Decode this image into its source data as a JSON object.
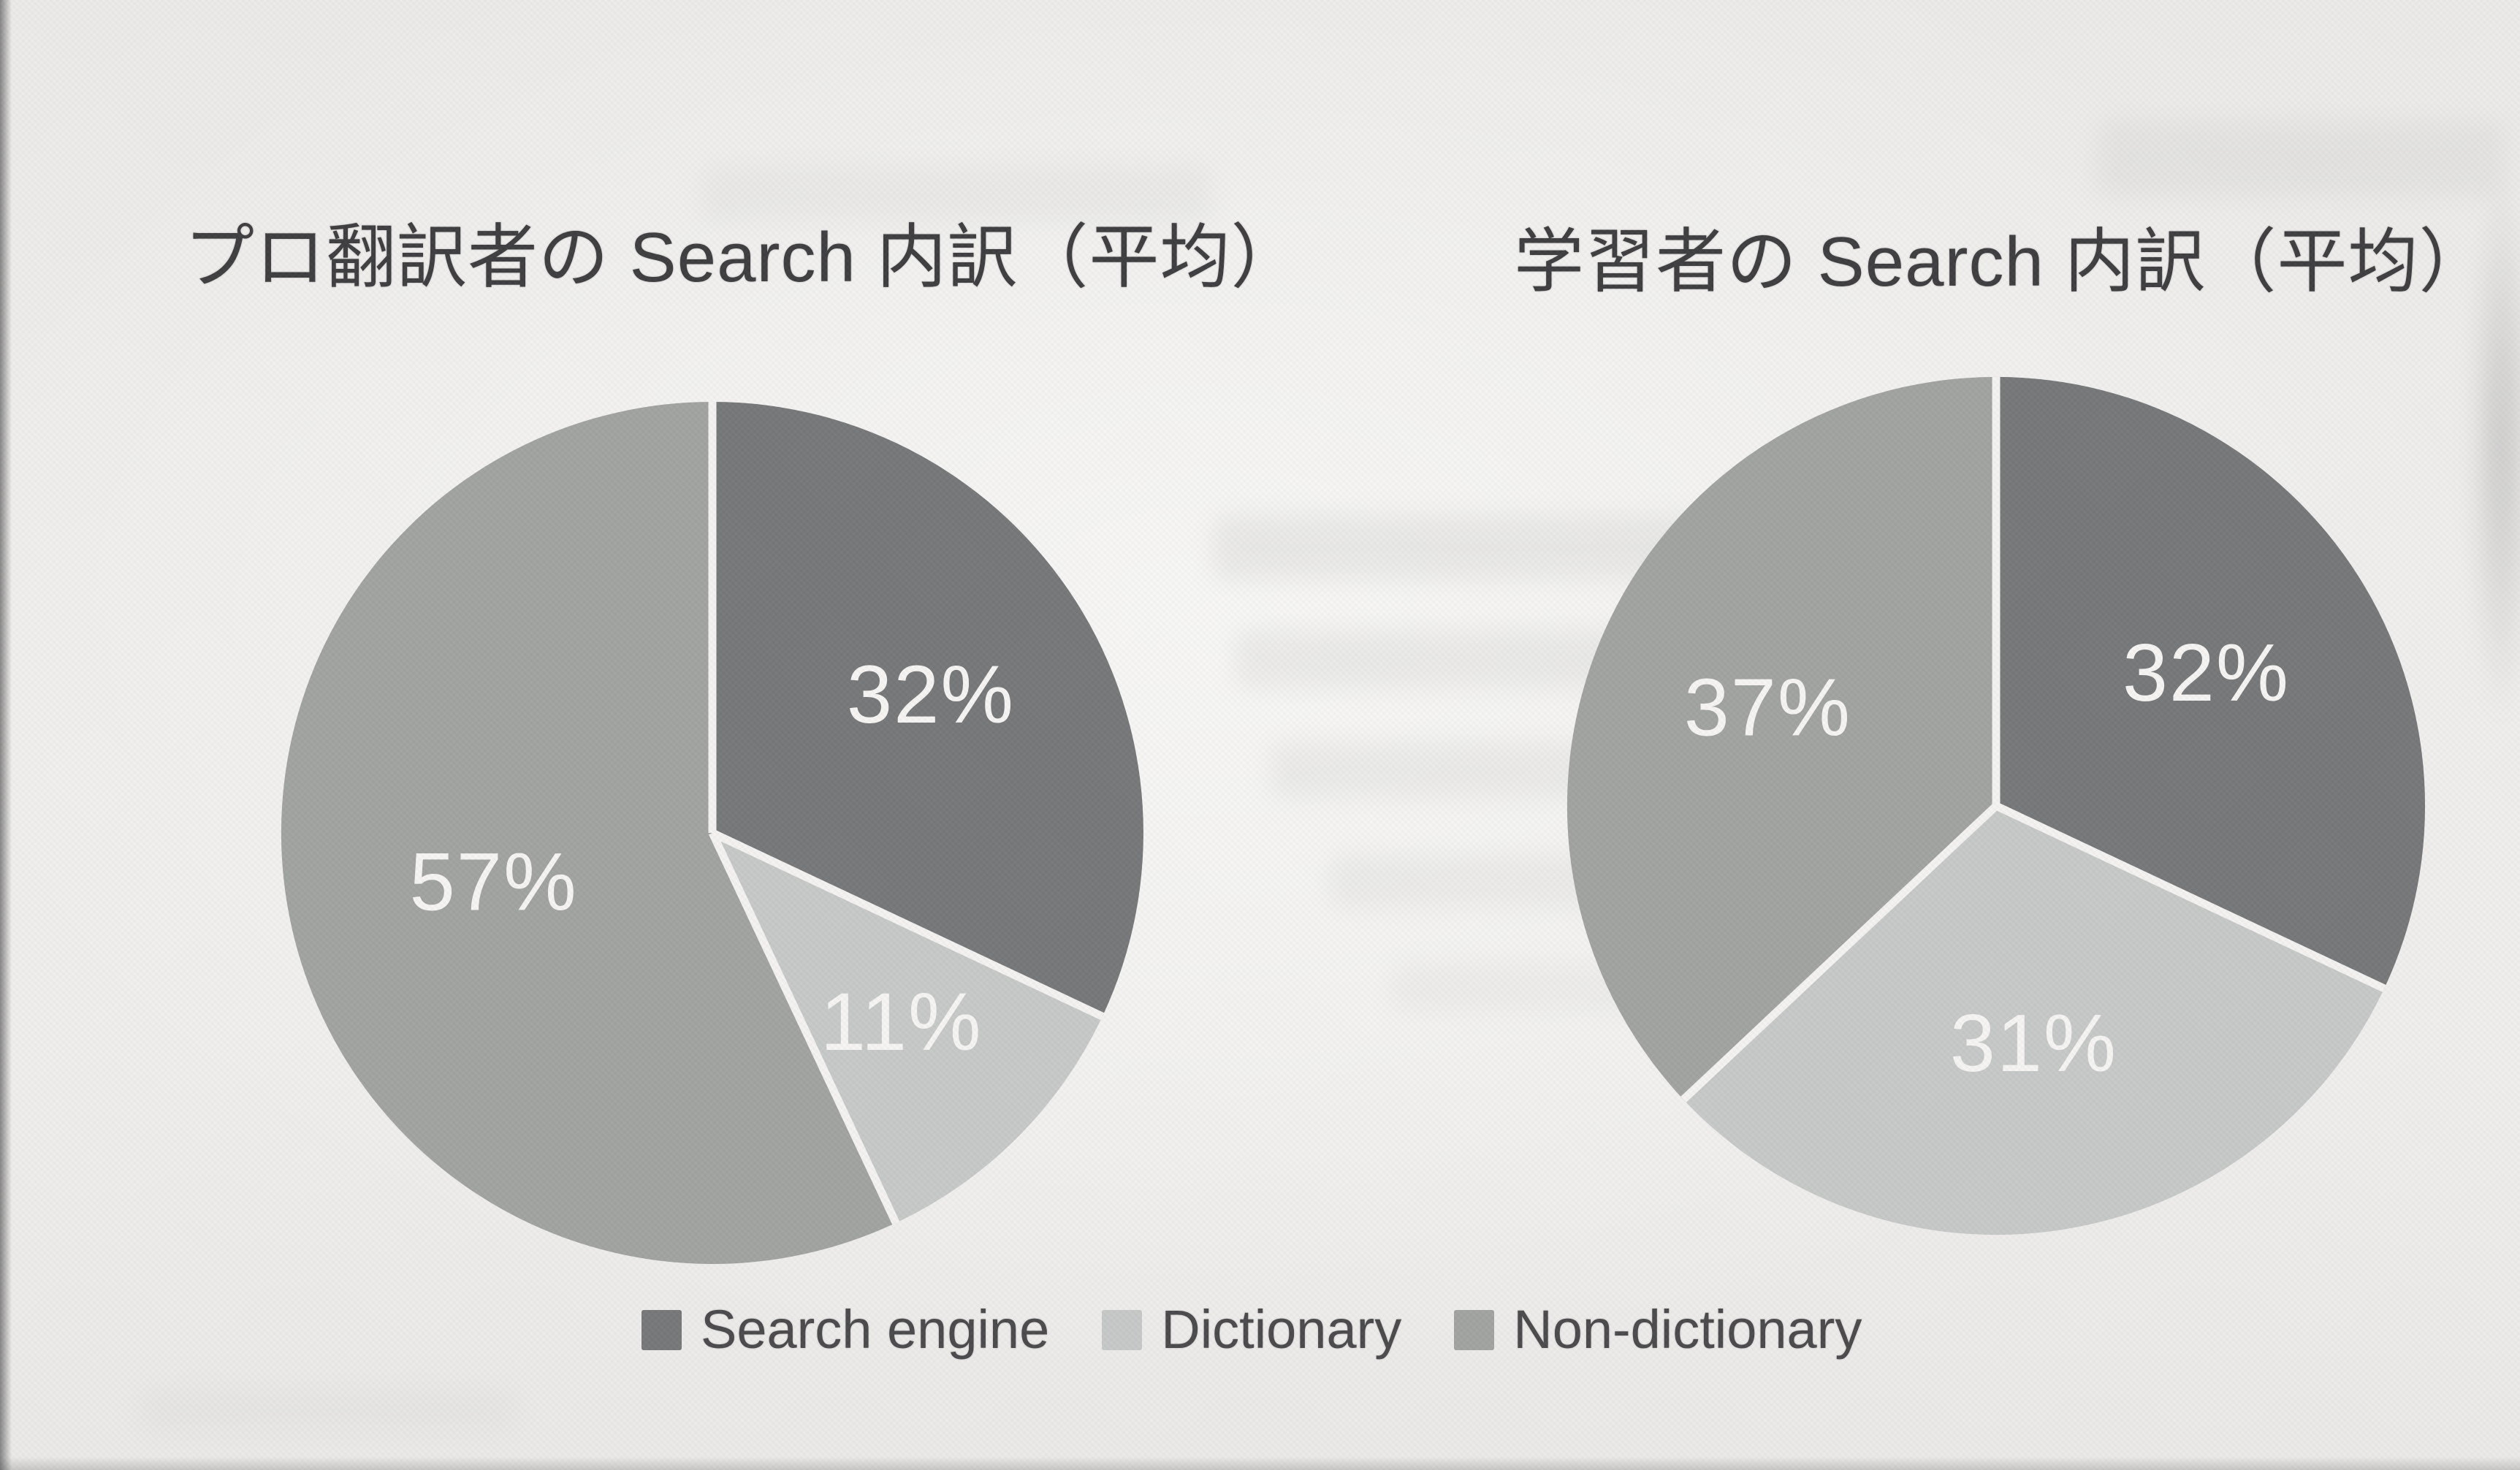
{
  "page": {
    "background_color": "#eeedeb",
    "divider_color": "#f4f3f1",
    "title_color": "#3f3f41",
    "legend_text_color": "#4b4b4d"
  },
  "legend": {
    "items": [
      {
        "label": "Search engine",
        "color": "#76787a"
      },
      {
        "label": "Dictionary",
        "color": "#c6c9c8"
      },
      {
        "label": "Non-dictionary",
        "color": "#a2a4a2"
      }
    ]
  },
  "chart_data": [
    {
      "type": "pie",
      "title": "プロ翻訳者の Search 内訳（平均）",
      "categories": [
        "Search engine",
        "Dictionary",
        "Non-dictionary"
      ],
      "values": [
        32,
        11,
        57
      ],
      "unit": "%",
      "data_labels": [
        "32%",
        "11%",
        "57%"
      ],
      "colors": [
        "#76787a",
        "#c6c9c8",
        "#a2a4a2"
      ],
      "data_label_color": "#f6f5f3",
      "start_angle_deg": 0,
      "direction": "clockwise",
      "legend_position": "bottom"
    },
    {
      "type": "pie",
      "title": "学習者の Search 内訳（平均）",
      "categories": [
        "Search engine",
        "Dictionary",
        "Non-dictionary"
      ],
      "values": [
        32,
        31,
        37
      ],
      "unit": "%",
      "data_labels": [
        "32%",
        "31%",
        "37%"
      ],
      "colors": [
        "#76787a",
        "#c6c9c8",
        "#a2a4a2"
      ],
      "data_label_color": "#f6f5f3",
      "start_angle_deg": 0,
      "direction": "clockwise",
      "legend_position": "bottom"
    }
  ]
}
